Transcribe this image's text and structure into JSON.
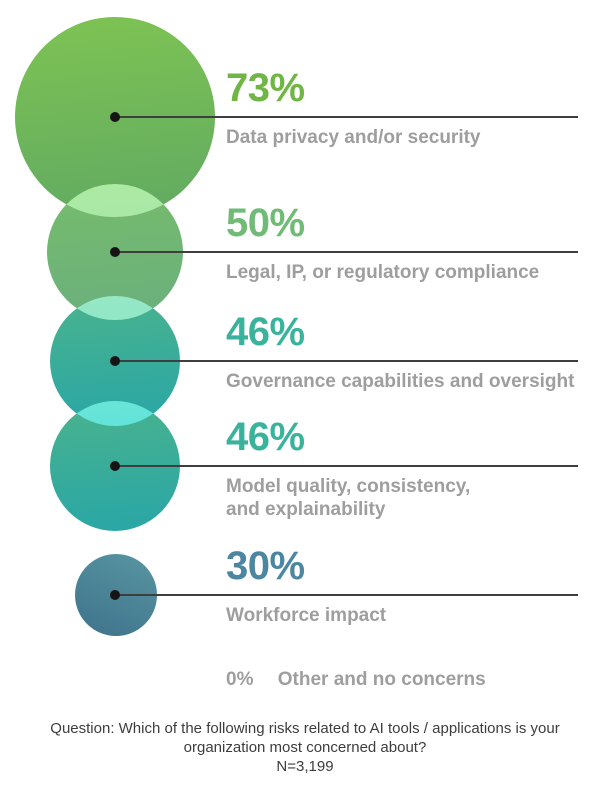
{
  "chart_data": {
    "type": "bubble",
    "unit": "%",
    "legend_position": "none",
    "background_color": "#ffffff",
    "leader_line_color": "#3e3e3e",
    "label_text_color": "#9e9e9e",
    "footer_text_color": "#3d3d3d",
    "items": [
      {
        "label": "Data privacy and/or security",
        "label_display": "Data privacy and/or security",
        "value": 73,
        "percent_label": "73%",
        "accent_color": "#6fb644",
        "bubble_color_top": "#7cc154",
        "bubble_color_bottom": "#63ac61",
        "bubble_radius_px": 100
      },
      {
        "label": "Legal, IP,  or regulatory compliance",
        "label_display": "Legal, IP,  or regulatory compliance",
        "value": 50,
        "percent_label": "50%",
        "accent_color": "#70bb75",
        "bubble_color_top": "#76bb6d",
        "bubble_color_bottom": "#6bb07c",
        "bubble_radius_px": 68
      },
      {
        "label": "Governance capabilities and oversight",
        "label_display": "Governance capabilities and oversight",
        "value": 46,
        "percent_label": "46%",
        "accent_color": "#3ab39d",
        "bubble_color_top": "#47b28f",
        "bubble_color_bottom": "#2ba7a5",
        "bubble_radius_px": 65
      },
      {
        "label": "Model quality, consistency, and explainability",
        "label_display": "Model quality, consistency,\nand explainability",
        "value": 46,
        "percent_label": "46%",
        "accent_color": "#3ab39d",
        "bubble_color_top": "#47b28f",
        "bubble_color_bottom": "#2ba7a5",
        "bubble_radius_px": 65
      },
      {
        "label": "Workforce impact",
        "label_display": "Workforce impact",
        "value": 30,
        "percent_label": "30%",
        "accent_color": "#4c86a0",
        "bubble_color_top": "#55929f",
        "bubble_color_bottom": "#40748d",
        "bubble_radius_px": 41
      },
      {
        "label": "Other and no concerns",
        "label_display": "Other and no concerns",
        "value": 0,
        "percent_label": "0%",
        "accent_color": "#9e9e9e",
        "bubble_radius_px": 0
      }
    ],
    "question": "Question: Which of the following risks related to AI tools / applications is your organization most concerned about?",
    "sample_size": "N=3,199"
  }
}
